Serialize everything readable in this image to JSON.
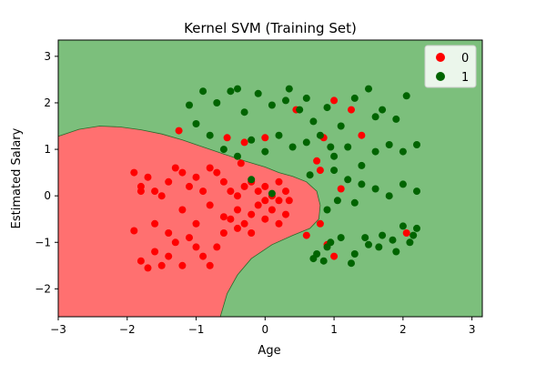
{
  "chart_data": {
    "type": "scatter",
    "title": "Kernel SVM (Training Set)",
    "xlabel": "Age",
    "ylabel": "Estimated Salary",
    "xlim": [
      -3,
      3.15
    ],
    "ylim": [
      -2.6,
      3.35
    ],
    "xticks": [
      -3,
      -2,
      -1,
      0,
      1,
      2,
      3
    ],
    "yticks": [
      -2,
      -1,
      0,
      1,
      2,
      3
    ],
    "grid": false,
    "legend_position": "top-right",
    "regions": [
      {
        "class": "0",
        "color": "#ff7070",
        "boundary": [
          [
            -3,
            1.28
          ],
          [
            -2.7,
            1.43
          ],
          [
            -2.4,
            1.5
          ],
          [
            -2.1,
            1.48
          ],
          [
            -1.8,
            1.42
          ],
          [
            -1.5,
            1.33
          ],
          [
            -1.2,
            1.2
          ],
          [
            -0.9,
            1.05
          ],
          [
            -0.6,
            0.9
          ],
          [
            -0.3,
            0.75
          ],
          [
            0,
            0.62
          ],
          [
            0.2,
            0.5
          ],
          [
            0.4,
            0.42
          ],
          [
            0.6,
            0.3
          ],
          [
            0.75,
            0.1
          ],
          [
            0.8,
            -0.2
          ],
          [
            0.78,
            -0.5
          ],
          [
            0.65,
            -0.7
          ],
          [
            0.4,
            -0.85
          ],
          [
            0.1,
            -1.05
          ],
          [
            -0.2,
            -1.35
          ],
          [
            -0.4,
            -1.7
          ],
          [
            -0.55,
            -2.1
          ],
          [
            -0.65,
            -2.6
          ],
          [
            -3,
            -2.6
          ]
        ]
      },
      {
        "class": "1",
        "color": "#7cbf7c"
      }
    ],
    "series": [
      {
        "name": "0",
        "color": "#ff0000",
        "points": [
          [
            -1.9,
            0.5
          ],
          [
            -1.8,
            0.2
          ],
          [
            -1.7,
            0.4
          ],
          [
            -1.6,
            0.1
          ],
          [
            -1.5,
            0.0
          ],
          [
            -1.4,
            0.3
          ],
          [
            -1.3,
            0.6
          ],
          [
            -1.2,
            0.5
          ],
          [
            -1.1,
            0.2
          ],
          [
            -1.0,
            0.4
          ],
          [
            -0.9,
            0.1
          ],
          [
            -0.8,
            0.6
          ],
          [
            -0.7,
            0.5
          ],
          [
            -0.6,
            0.3
          ],
          [
            -0.5,
            0.1
          ],
          [
            -0.4,
            0.0
          ],
          [
            -0.3,
            0.2
          ],
          [
            -0.2,
            0.3
          ],
          [
            -0.1,
            0.1
          ],
          [
            0.0,
            0.2
          ],
          [
            0.1,
            0.0
          ],
          [
            0.2,
            0.3
          ],
          [
            0.3,
            0.1
          ],
          [
            0.35,
            -0.1
          ],
          [
            -1.9,
            -0.75
          ],
          [
            -1.8,
            -1.4
          ],
          [
            -1.7,
            -1.55
          ],
          [
            -1.6,
            -1.2
          ],
          [
            -1.5,
            -1.5
          ],
          [
            -1.4,
            -1.3
          ],
          [
            -1.3,
            -1.0
          ],
          [
            -1.2,
            -1.5
          ],
          [
            -1.1,
            -0.9
          ],
          [
            -1.0,
            -1.1
          ],
          [
            -0.9,
            -1.3
          ],
          [
            -0.8,
            -1.5
          ],
          [
            -0.7,
            -1.1
          ],
          [
            -0.6,
            -0.8
          ],
          [
            -0.5,
            -0.5
          ],
          [
            -0.4,
            -0.3
          ],
          [
            -0.3,
            -0.6
          ],
          [
            -0.2,
            -0.4
          ],
          [
            -0.1,
            -0.2
          ],
          [
            0.0,
            -0.5
          ],
          [
            0.1,
            -0.3
          ],
          [
            0.2,
            -0.1
          ],
          [
            0.3,
            -0.4
          ],
          [
            -1.8,
            0.1
          ],
          [
            -1.6,
            -0.6
          ],
          [
            -1.4,
            -0.8
          ],
          [
            -1.2,
            -0.3
          ],
          [
            -1.0,
            -0.6
          ],
          [
            -0.8,
            -0.2
          ],
          [
            -0.6,
            -0.45
          ],
          [
            -0.4,
            -0.7
          ],
          [
            -0.2,
            -0.8
          ],
          [
            0.0,
            -0.1
          ],
          [
            0.2,
            -0.6
          ],
          [
            -1.25,
            1.4
          ],
          [
            -0.55,
            1.25
          ],
          [
            -0.3,
            1.15
          ],
          [
            -0.35,
            0.7
          ],
          [
            0.0,
            1.25
          ],
          [
            0.45,
            1.85
          ],
          [
            0.85,
            1.25
          ],
          [
            1.0,
            2.05
          ],
          [
            1.25,
            1.85
          ],
          [
            1.4,
            1.3
          ],
          [
            0.75,
            0.75
          ],
          [
            0.8,
            0.55
          ],
          [
            1.1,
            0.15
          ],
          [
            0.8,
            -0.6
          ],
          [
            0.9,
            -1.05
          ],
          [
            1.0,
            -1.3
          ],
          [
            2.05,
            -0.8
          ],
          [
            0.6,
            -0.85
          ]
        ]
      },
      {
        "name": "1",
        "color": "#006400",
        "points": [
          [
            -1.1,
            1.95
          ],
          [
            -0.9,
            2.25
          ],
          [
            -0.7,
            2.0
          ],
          [
            -0.5,
            2.25
          ],
          [
            -0.3,
            1.8
          ],
          [
            -0.1,
            2.2
          ],
          [
            0.1,
            1.95
          ],
          [
            0.3,
            2.05
          ],
          [
            0.5,
            1.85
          ],
          [
            0.7,
            1.6
          ],
          [
            0.9,
            1.9
          ],
          [
            1.1,
            1.5
          ],
          [
            1.3,
            2.1
          ],
          [
            1.5,
            2.3
          ],
          [
            1.7,
            1.85
          ],
          [
            1.9,
            1.65
          ],
          [
            2.05,
            2.15
          ],
          [
            -1.0,
            1.55
          ],
          [
            -0.8,
            1.3
          ],
          [
            -0.6,
            1.0
          ],
          [
            -0.4,
            0.85
          ],
          [
            -0.2,
            1.2
          ],
          [
            0.0,
            0.95
          ],
          [
            0.2,
            1.3
          ],
          [
            0.4,
            1.05
          ],
          [
            0.6,
            1.15
          ],
          [
            0.8,
            1.3
          ],
          [
            1.0,
            0.85
          ],
          [
            1.2,
            1.05
          ],
          [
            1.4,
            0.65
          ],
          [
            1.6,
            0.95
          ],
          [
            1.8,
            1.1
          ],
          [
            2.0,
            0.95
          ],
          [
            2.2,
            1.1
          ],
          [
            1.0,
            0.55
          ],
          [
            1.2,
            0.35
          ],
          [
            1.4,
            0.25
          ],
          [
            1.6,
            0.15
          ],
          [
            1.8,
            0.0
          ],
          [
            2.0,
            0.25
          ],
          [
            2.2,
            0.1
          ],
          [
            0.7,
            -1.35
          ],
          [
            0.9,
            -1.1
          ],
          [
            1.1,
            -0.9
          ],
          [
            1.3,
            -1.25
          ],
          [
            1.5,
            -1.05
          ],
          [
            1.7,
            -0.85
          ],
          [
            1.9,
            -1.2
          ],
          [
            2.1,
            -1.0
          ],
          [
            2.2,
            -0.7
          ],
          [
            0.75,
            -1.25
          ],
          [
            0.85,
            -1.4
          ],
          [
            0.95,
            -1.0
          ],
          [
            1.25,
            -1.45
          ],
          [
            1.45,
            -0.9
          ],
          [
            1.65,
            -1.1
          ],
          [
            1.85,
            -0.95
          ],
          [
            2.0,
            -0.65
          ],
          [
            0.9,
            -0.3
          ],
          [
            1.05,
            -0.1
          ],
          [
            -0.4,
            2.3
          ],
          [
            0.6,
            2.1
          ],
          [
            1.6,
            1.7
          ],
          [
            0.35,
            2.3
          ],
          [
            -0.2,
            0.35
          ],
          [
            0.1,
            0.05
          ],
          [
            1.3,
            -0.15
          ],
          [
            2.15,
            -0.85
          ],
          [
            0.95,
            1.05
          ],
          [
            0.65,
            0.45
          ]
        ]
      }
    ]
  }
}
